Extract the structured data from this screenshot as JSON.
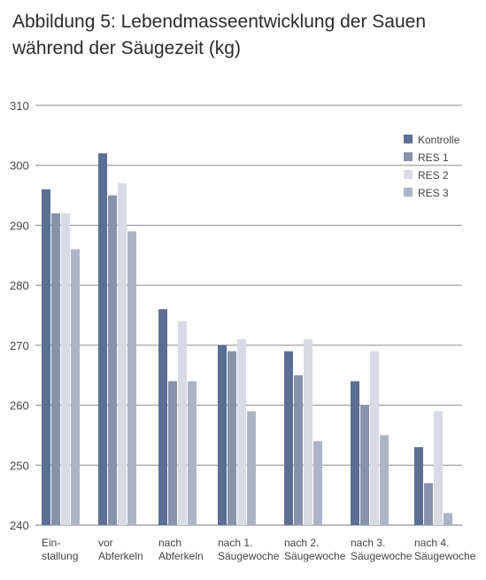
{
  "title": {
    "line1": "Abbildung 5: Lebendmasseentwicklung der Sauen",
    "line2": "während der Säugezeit (kg)"
  },
  "chart_data": {
    "type": "bar",
    "title": "Abbildung 5: Lebendmasseentwicklung der Sauen während der Säugezeit (kg)",
    "xlabel": "",
    "ylabel": "",
    "ylim": [
      240,
      310
    ],
    "yticks": [
      240,
      250,
      260,
      270,
      280,
      290,
      300,
      310
    ],
    "grid": true,
    "legend_position": "top-right",
    "categories": [
      [
        "Ein-",
        "stallung"
      ],
      [
        "vor",
        "Abferkeln"
      ],
      [
        "nach",
        "Abferkeln"
      ],
      [
        "nach 1.",
        "Säugewoche"
      ],
      [
        "nach 2.",
        "Säugewoche"
      ],
      [
        "nach 3.",
        "Säugewoche"
      ],
      [
        "nach 4.",
        "Säugewoche"
      ]
    ],
    "series": [
      {
        "name": "Kontrolle",
        "color": "#5b6e93",
        "values": [
          296,
          302,
          276,
          270,
          269,
          264,
          253
        ]
      },
      {
        "name": "RES 1",
        "color": "#8793ad",
        "values": [
          292,
          295,
          264,
          269,
          265,
          260,
          247
        ]
      },
      {
        "name": "RES 2",
        "color": "#d8dbe6",
        "values": [
          292,
          297,
          274,
          271,
          271,
          269,
          259
        ]
      },
      {
        "name": "RES 3",
        "color": "#aeb4c8",
        "values": [
          286,
          289,
          264,
          259,
          254,
          255,
          242
        ]
      }
    ]
  }
}
